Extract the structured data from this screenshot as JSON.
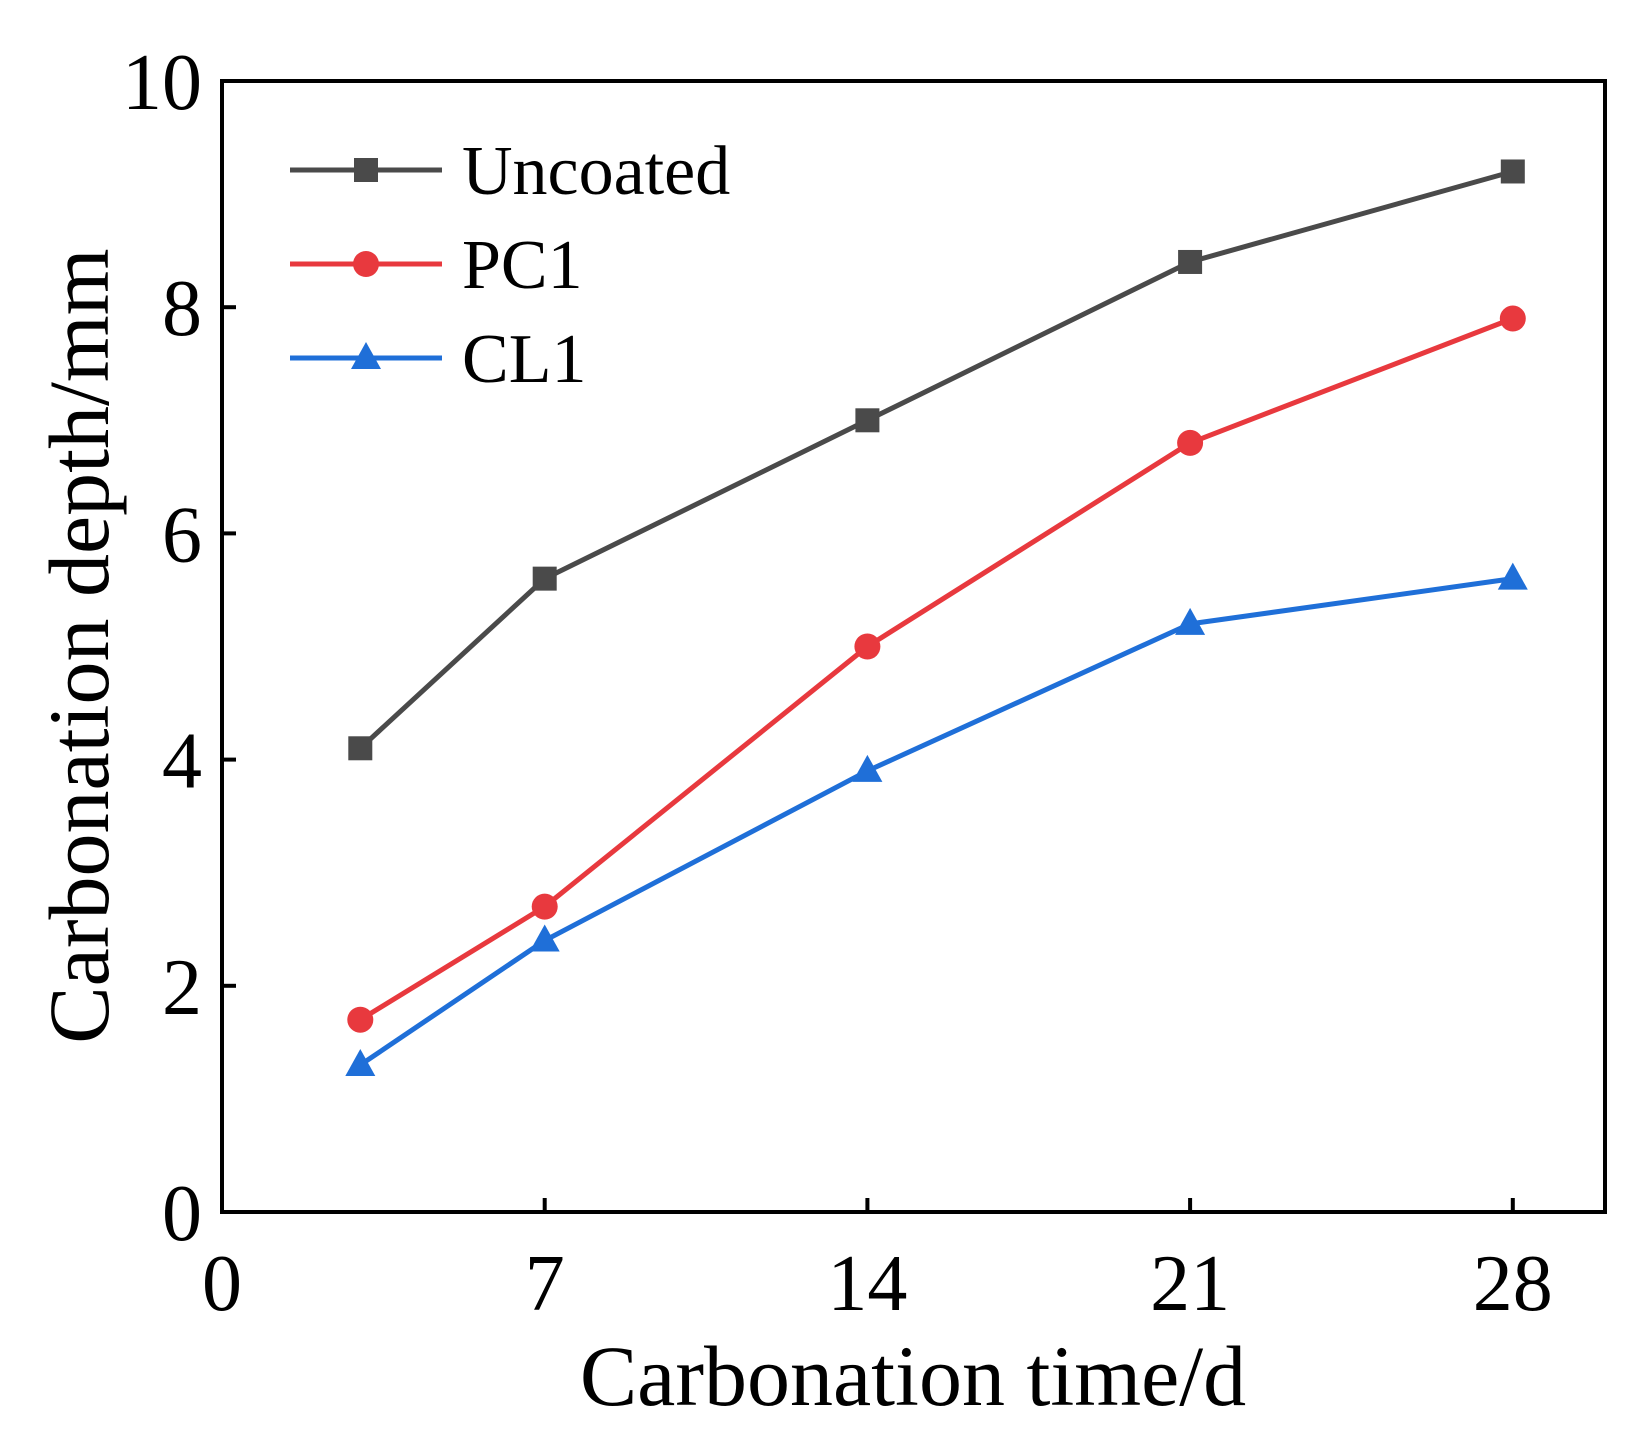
{
  "chart_data": {
    "type": "line",
    "title": "",
    "xlabel": "Carbonation time/d",
    "ylabel": "Carbonation depth/mm",
    "xlim": [
      0,
      30
    ],
    "ylim": [
      0,
      10
    ],
    "xticks": [
      0,
      7,
      14,
      21,
      28
    ],
    "xtick_labels": [
      "0",
      "7",
      "14",
      "21",
      "28"
    ],
    "yticks": [
      0,
      2,
      4,
      6,
      8,
      10
    ],
    "ytick_labels": [
      "0",
      "2",
      "4",
      "6",
      "8",
      "10"
    ],
    "grid": false,
    "legend_position": "top-left",
    "x": [
      3,
      7,
      14,
      21,
      28
    ],
    "series": [
      {
        "name": "Uncoated",
        "color": "#4a4a4a",
        "marker": "square",
        "values": [
          4.1,
          5.6,
          7.0,
          8.4,
          9.2
        ]
      },
      {
        "name": "PC1",
        "color": "#e8393e",
        "marker": "circle",
        "values": [
          1.7,
          2.7,
          5.0,
          6.8,
          7.9
        ]
      },
      {
        "name": "CL1",
        "color": "#1f6fd8",
        "marker": "triangle",
        "values": [
          1.3,
          2.4,
          3.9,
          5.2,
          5.6
        ]
      }
    ]
  }
}
